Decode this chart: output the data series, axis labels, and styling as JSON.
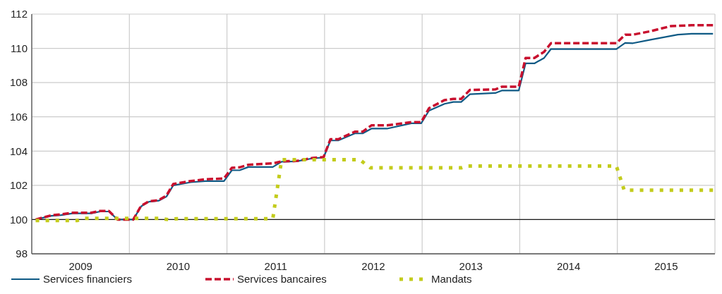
{
  "chart_data": {
    "type": "line",
    "xlim": [
      2009,
      2016
    ],
    "xticks": [
      {
        "value": 2009,
        "label": null
      },
      {
        "value": 2009.5,
        "label": "2009"
      },
      {
        "value": 2010,
        "label": null
      },
      {
        "value": 2010.5,
        "label": "2010"
      },
      {
        "value": 2011,
        "label": null
      },
      {
        "value": 2011.5,
        "label": "2011"
      },
      {
        "value": 2012,
        "label": null
      },
      {
        "value": 2012.5,
        "label": "2012"
      },
      {
        "value": 2013,
        "label": null
      },
      {
        "value": 2013.5,
        "label": "2013"
      },
      {
        "value": 2014,
        "label": null
      },
      {
        "value": 2014.5,
        "label": "2014"
      },
      {
        "value": 2015,
        "label": null
      },
      {
        "value": 2015.5,
        "label": "2015"
      },
      {
        "value": 2016,
        "label": null
      }
    ],
    "ylim": [
      98,
      112
    ],
    "yticks": [
      98,
      100,
      102,
      104,
      106,
      108,
      110,
      112
    ],
    "grid": true,
    "legend": "bottom",
    "ref_lines": [
      {
        "axis": "y",
        "value": 100,
        "color": "#1a1a1a"
      }
    ],
    "series": [
      {
        "name": "Services financiers",
        "color": "#0f5a85",
        "line_style": "solid",
        "x": [
          2009.04,
          2009.2,
          2009.3,
          2009.42,
          2009.61,
          2009.7,
          2009.79,
          2009.88,
          2010.04,
          2010.12,
          2010.2,
          2010.3,
          2010.38,
          2010.45,
          2010.63,
          2010.78,
          2010.97,
          2011.05,
          2011.13,
          2011.22,
          2011.47,
          2011.56,
          2011.71,
          2011.88,
          2011.99,
          2012.06,
          2012.14,
          2012.31,
          2012.39,
          2012.48,
          2012.64,
          2012.89,
          2012.99,
          2013.07,
          2013.23,
          2013.32,
          2013.4,
          2013.49,
          2013.75,
          2013.82,
          2013.99,
          2014.06,
          2014.15,
          2014.25,
          2014.32,
          2014.99,
          2015.08,
          2015.16,
          2015.34,
          2015.62,
          2015.76,
          2015.98
        ],
        "values": [
          100.0,
          100.22,
          100.26,
          100.36,
          100.36,
          100.47,
          100.47,
          100.0,
          100.0,
          100.77,
          101.04,
          101.1,
          101.34,
          102.0,
          102.18,
          102.25,
          102.25,
          102.88,
          102.88,
          103.07,
          103.07,
          103.38,
          103.4,
          103.58,
          103.62,
          104.62,
          104.62,
          105.03,
          105.03,
          105.31,
          105.31,
          105.62,
          105.62,
          106.36,
          106.76,
          106.87,
          106.87,
          107.32,
          107.39,
          107.54,
          107.54,
          109.12,
          109.12,
          109.44,
          109.96,
          109.96,
          110.32,
          110.3,
          110.5,
          110.8,
          110.85,
          110.85
        ]
      },
      {
        "name": "Services bancaires",
        "color": "#c8102e",
        "line_style": "dashed",
        "x": [
          2009.04,
          2009.2,
          2009.3,
          2009.42,
          2009.61,
          2009.7,
          2009.79,
          2009.88,
          2010.04,
          2010.12,
          2010.2,
          2010.3,
          2010.38,
          2010.45,
          2010.63,
          2010.78,
          2010.97,
          2011.05,
          2011.13,
          2011.22,
          2011.47,
          2011.56,
          2011.71,
          2011.88,
          2011.99,
          2012.06,
          2012.14,
          2012.31,
          2012.39,
          2012.48,
          2012.64,
          2012.89,
          2012.99,
          2013.07,
          2013.23,
          2013.32,
          2013.4,
          2013.49,
          2013.75,
          2013.82,
          2013.99,
          2014.06,
          2014.15,
          2014.25,
          2014.32,
          2014.99,
          2015.08,
          2015.16,
          2015.34,
          2015.55,
          2015.76,
          2015.98
        ],
        "values": [
          100.0,
          100.25,
          100.3,
          100.4,
          100.4,
          100.5,
          100.5,
          100.0,
          100.0,
          100.8,
          101.07,
          101.13,
          101.4,
          102.08,
          102.25,
          102.35,
          102.4,
          103.02,
          103.05,
          103.2,
          103.28,
          103.4,
          103.42,
          103.6,
          103.65,
          104.69,
          104.69,
          105.13,
          105.13,
          105.5,
          105.5,
          105.69,
          105.69,
          106.5,
          106.98,
          107.05,
          107.05,
          107.57,
          107.6,
          107.76,
          107.76,
          109.44,
          109.44,
          109.8,
          110.3,
          110.3,
          110.8,
          110.8,
          111.0,
          111.3,
          111.35,
          111.35
        ]
      },
      {
        "name": "Mandats",
        "color": "#c3cc1c",
        "line_style": "dotted",
        "x": [
          2009.04,
          2009.47,
          2009.54,
          2010.3,
          2010.4,
          2010.49,
          2011.47,
          2011.56,
          2012.36,
          2012.47,
          2013.4,
          2013.46,
          2014.99,
          2015.07,
          2015.98
        ],
        "values": [
          99.95,
          99.95,
          100.07,
          100.07,
          100.0,
          100.05,
          100.05,
          103.5,
          103.5,
          103.02,
          103.02,
          103.13,
          103.13,
          101.72,
          101.72
        ]
      }
    ]
  }
}
